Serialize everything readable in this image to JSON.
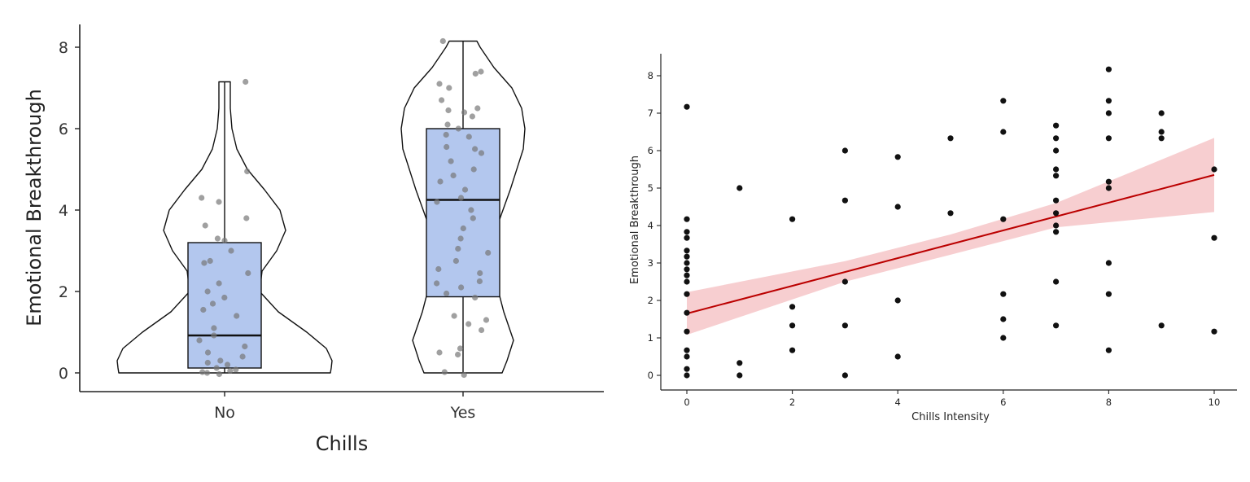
{
  "chart_data": [
    {
      "type": "violin",
      "xlabel": "Chills",
      "ylabel": "Emotional Breakthrough",
      "ylim": [
        -0.45,
        8.5
      ],
      "yticks": [
        0,
        2,
        4,
        6,
        8
      ],
      "categories": [
        "No",
        "Yes"
      ],
      "colors": {
        "box": "#b3c7ee",
        "outline": "#111111",
        "points": "#777777"
      },
      "box_stats": [
        {
          "category": "No",
          "q1": 0.12,
          "median": 0.92,
          "q3": 3.2,
          "whisker_low": 0,
          "whisker_high": 7.15
        },
        {
          "category": "Yes",
          "q1": 1.87,
          "median": 4.25,
          "q3": 6.0,
          "whisker_low": 0,
          "whisker_high": 8.15
        }
      ],
      "points": [
        {
          "category": "No",
          "values": [
            7.15,
            4.95,
            4.3,
            4.2,
            3.8,
            3.62,
            3.3,
            3.25,
            3.0,
            2.75,
            2.7,
            2.45,
            2.2,
            2.0,
            1.85,
            1.7,
            1.55,
            1.4,
            1.1,
            0.92,
            0.8,
            0.65,
            0.5,
            0.4,
            0.3,
            0.25,
            0.2,
            0.12,
            0.08,
            0.05,
            0.02,
            0.0,
            -0.03
          ]
        },
        {
          "category": "Yes",
          "values": [
            8.15,
            7.4,
            7.35,
            7.1,
            7.0,
            6.7,
            6.5,
            6.45,
            6.4,
            6.3,
            6.1,
            6.0,
            5.85,
            5.8,
            5.55,
            5.5,
            5.4,
            5.2,
            5.0,
            4.85,
            4.7,
            4.5,
            4.3,
            4.2,
            4.0,
            3.8,
            3.55,
            3.3,
            3.05,
            2.95,
            2.75,
            2.55,
            2.45,
            2.25,
            2.2,
            2.1,
            1.95,
            1.85,
            1.4,
            1.3,
            1.2,
            1.05,
            0.6,
            0.5,
            0.45,
            0.02,
            -0.05
          ]
        }
      ]
    },
    {
      "type": "scatter",
      "xlabel": "Chills Intensity",
      "ylabel": "Emotional Breakthrough",
      "xlim": [
        -0.4,
        10.4
      ],
      "ylim": [
        -0.4,
        8.6
      ],
      "xticks": [
        0,
        2,
        4,
        6,
        8,
        10
      ],
      "yticks": [
        0,
        1,
        2,
        3,
        4,
        5,
        6,
        7,
        8
      ],
      "colors": {
        "points": "#111111",
        "fit": "#bb0000",
        "band": "#f6c6c8"
      },
      "points": [
        [
          0,
          7.17
        ],
        [
          0,
          4.17
        ],
        [
          0,
          3.83
        ],
        [
          0,
          3.67
        ],
        [
          0,
          3.33
        ],
        [
          0,
          3.17
        ],
        [
          0,
          3.0
        ],
        [
          0,
          2.83
        ],
        [
          0,
          2.67
        ],
        [
          0,
          2.5
        ],
        [
          0,
          2.17
        ],
        [
          0,
          1.67
        ],
        [
          0,
          1.17
        ],
        [
          0,
          0.67
        ],
        [
          0,
          0.5
        ],
        [
          0,
          0.17
        ],
        [
          0,
          0.0
        ],
        [
          1,
          5.0
        ],
        [
          1,
          0.33
        ],
        [
          1,
          0.0
        ],
        [
          2,
          4.17
        ],
        [
          2,
          1.83
        ],
        [
          2,
          1.33
        ],
        [
          2,
          0.67
        ],
        [
          3,
          6.0
        ],
        [
          3,
          4.67
        ],
        [
          3,
          2.5
        ],
        [
          3,
          1.33
        ],
        [
          3,
          0.0
        ],
        [
          4,
          5.83
        ],
        [
          4,
          4.5
        ],
        [
          4,
          2.0
        ],
        [
          4,
          0.5
        ],
        [
          5,
          6.33
        ],
        [
          5,
          4.33
        ],
        [
          6,
          7.33
        ],
        [
          6,
          6.5
        ],
        [
          6,
          4.17
        ],
        [
          6,
          2.17
        ],
        [
          6,
          1.5
        ],
        [
          6,
          1.0
        ],
        [
          7,
          6.67
        ],
        [
          7,
          6.33
        ],
        [
          7,
          6.0
        ],
        [
          7,
          5.5
        ],
        [
          7,
          5.33
        ],
        [
          7,
          4.67
        ],
        [
          7,
          4.33
        ],
        [
          7,
          4.0
        ],
        [
          7,
          3.83
        ],
        [
          7,
          2.5
        ],
        [
          7,
          1.33
        ],
        [
          8,
          8.17
        ],
        [
          8,
          7.33
        ],
        [
          8,
          7.0
        ],
        [
          8,
          6.33
        ],
        [
          8,
          5.17
        ],
        [
          8,
          5.0
        ],
        [
          8,
          3.0
        ],
        [
          8,
          2.17
        ],
        [
          8,
          0.67
        ],
        [
          9,
          7.0
        ],
        [
          9,
          6.5
        ],
        [
          9,
          6.33
        ],
        [
          9,
          1.33
        ],
        [
          10,
          5.5
        ],
        [
          10,
          3.67
        ],
        [
          10,
          1.17
        ]
      ],
      "fit_line": {
        "x": [
          0,
          10
        ],
        "y": [
          1.65,
          5.35
        ]
      },
      "ci_band": [
        {
          "x": 0,
          "low": 1.08,
          "high": 2.22
        },
        {
          "x": 3,
          "low": 2.5,
          "high": 3.05
        },
        {
          "x": 5,
          "low": 3.22,
          "high": 3.76
        },
        {
          "x": 7,
          "low": 3.95,
          "high": 4.6
        },
        {
          "x": 10,
          "low": 4.36,
          "high": 6.34
        }
      ]
    }
  ]
}
